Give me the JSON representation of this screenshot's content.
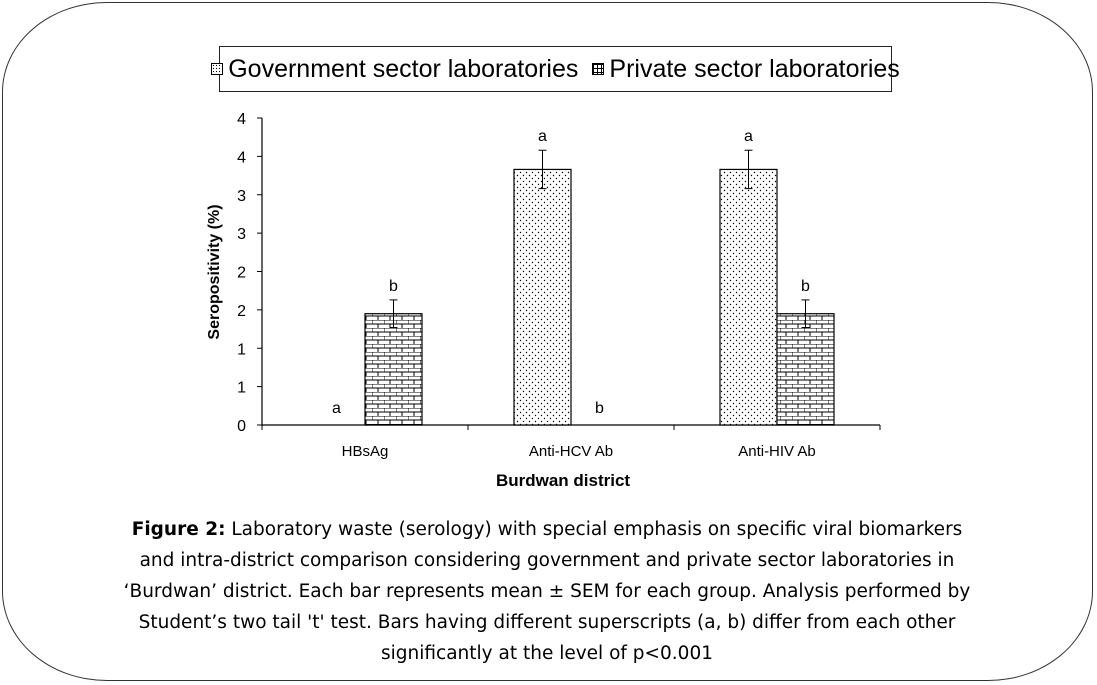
{
  "chart_data": {
    "type": "bar",
    "xlabel": "Burdwan district",
    "ylabel": "Seropositivity (%)",
    "ylim": [
      0,
      4
    ],
    "yticks": [
      "0",
      "1",
      "1",
      "2",
      "2",
      "3",
      "3",
      "4",
      "4"
    ],
    "categories": [
      "HBsAg",
      "Anti-HCV Ab",
      "Anti-HIV Ab"
    ],
    "series": [
      {
        "name": "Government sector laboratories",
        "pattern": "dots",
        "values": [
          0,
          3.33,
          3.33
        ],
        "sem": [
          0,
          0.25,
          0.25
        ],
        "superscripts": [
          "a",
          "a",
          "a"
        ]
      },
      {
        "name": "Private sector laboratories",
        "pattern": "brick",
        "values": [
          1.45,
          0,
          1.45
        ],
        "sem": [
          0.18,
          0,
          0.18
        ],
        "superscripts": [
          "b",
          "b",
          "b"
        ]
      }
    ],
    "legend_position": "top",
    "grid": false
  },
  "caption": {
    "label": "Figure 2:",
    "text": "Laboratory waste (serology) with special emphasis on specific viral biomarkers and intra-district comparison considering government and private sector laboratories in ‘Burdwan’ district. Each bar represents mean ± SEM for each group. Analysis performed by Student’s two tail 't' test. Bars having different superscripts (a, b) differ from each other significantly at the level of p<0.001"
  }
}
